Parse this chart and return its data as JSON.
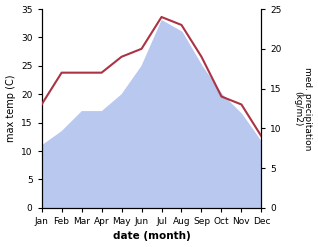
{
  "months": [
    "Jan",
    "Feb",
    "Mar",
    "Apr",
    "May",
    "Jun",
    "Jul",
    "Aug",
    "Sep",
    "Oct",
    "Nov",
    "Dec"
  ],
  "temp_max": [
    11,
    13.5,
    17,
    17,
    20,
    25,
    33,
    31,
    25,
    20,
    16.5,
    11.5
  ],
  "precipitation": [
    13,
    17,
    17,
    17,
    19,
    20,
    24,
    23,
    19,
    14,
    13,
    9
  ],
  "temp_fill_color": "#b8c8ee",
  "precip_line_color": "#aa3344",
  "ylabel_left": "max temp (C)",
  "ylabel_right": "med. precipitation\n(kg/m2)",
  "xlabel": "date (month)",
  "ylim_left": [
    0,
    35
  ],
  "ylim_right": [
    0,
    25
  ],
  "yticks_left": [
    0,
    5,
    10,
    15,
    20,
    25,
    30,
    35
  ],
  "yticks_right": [
    0,
    5,
    10,
    15,
    20,
    25
  ],
  "figsize": [
    3.18,
    2.47
  ],
  "dpi": 100
}
